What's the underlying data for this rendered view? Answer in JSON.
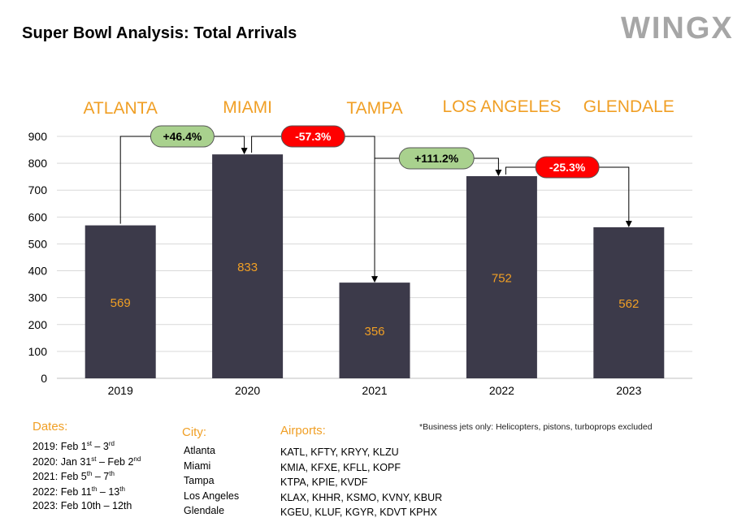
{
  "title": "Super Bowl Analysis: Total Arrivals",
  "logo_text": "WINGX",
  "chart_data": {
    "type": "bar",
    "categories": [
      "2019",
      "2020",
      "2021",
      "2022",
      "2023"
    ],
    "values": [
      569,
      833,
      356,
      752,
      562
    ],
    "city_labels": [
      "ATLANTA",
      "MIAMI",
      "TAMPA",
      "LOS ANGELES",
      "GLENDALE"
    ],
    "ylim": [
      0,
      900
    ],
    "yticks": [
      0,
      100,
      200,
      300,
      400,
      500,
      600,
      700,
      800,
      900
    ],
    "grid": true,
    "bar_color": "#3c3a4a",
    "label_color": "#f09f25",
    "changes": [
      {
        "label": "+46.4%",
        "color": "#a9d18e"
      },
      {
        "label": "-57.3%",
        "color": "#ff0000"
      },
      {
        "label": "+111.2%",
        "color": "#a9d18e"
      },
      {
        "label": "-25.3%",
        "color": "#ff0000"
      }
    ]
  },
  "dates": {
    "heading": "Dates:",
    "items": [
      {
        "pre": "2019: Feb 1",
        "s1": "st",
        "mid": " – 3",
        "s2": "rd",
        "post": ""
      },
      {
        "pre": "2020: Jan 31",
        "s1": "st",
        "mid": " – Feb 2",
        "s2": "nd",
        "post": ""
      },
      {
        "pre": "2021: Feb 5",
        "s1": "th",
        "mid": " – 7",
        "s2": "th",
        "post": ""
      },
      {
        "pre": "2022: Feb 11",
        "s1": "th",
        "mid": " –  13",
        "s2": "th",
        "post": ""
      },
      {
        "pre": "2023: Feb 10th – 12th",
        "s1": "",
        "mid": "",
        "s2": "",
        "post": ""
      }
    ]
  },
  "city": {
    "heading": "City:",
    "items": [
      "Atlanta",
      "Miami",
      "Tampa",
      "Los Angeles",
      "Glendale"
    ]
  },
  "airports": {
    "heading": "Airports:",
    "items": [
      "KATL, KFTY, KRYY, KLZU",
      "KMIA, KFXE, KFLL, KOPF",
      "KTPA, KPIE, KVDF",
      "KLAX, KHHR, KSMO, KVNY, KBUR",
      "KGEU, KLUF, KGYR, KDVT KPHX"
    ]
  },
  "footnote": "*Business jets only: Helicopters, pistons, turboprops excluded"
}
